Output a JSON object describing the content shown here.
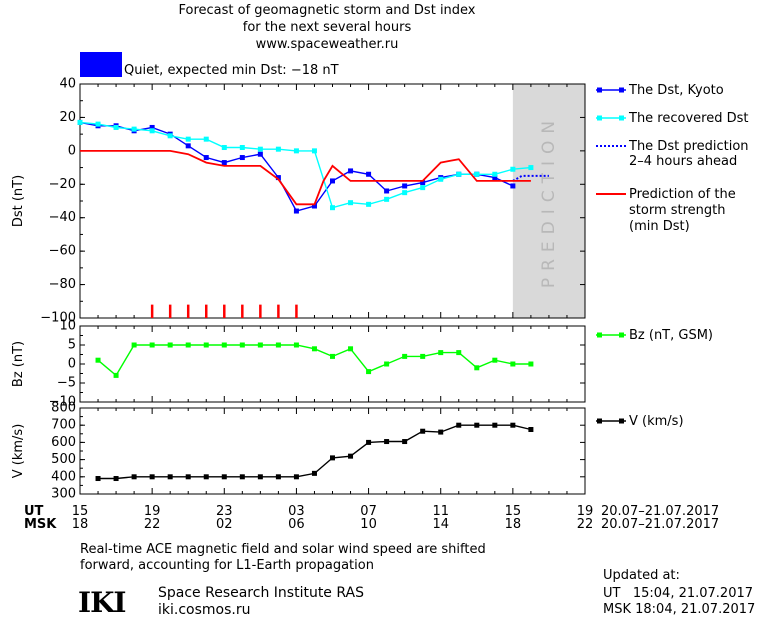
{
  "header": {
    "title_line1": "Forecast of geomagnetic storm and Dst index",
    "title_line2": "for the next several hours",
    "url": "www.spaceweather.ru",
    "status": "Quiet, expected min Dst: −18 nT",
    "status_color": "#0000ff"
  },
  "footer": {
    "note_line1": "Real-time ACE magnetic field and solar wind speed are shifted",
    "note_line2": "forward, accounting for L1-Earth propagation",
    "logo": "IKI",
    "org": "Space Research Institute RAS",
    "site": "iki.cosmos.ru",
    "updated_label": "Updated at:",
    "updated_ut": "UT   15:04, 21.07.2017",
    "updated_msk": "MSK 18:04, 21.07.2017"
  },
  "chart_data": [
    {
      "type": "line",
      "id": "dst",
      "ylabel": "Dst (nT)",
      "ylim": [
        -100,
        40
      ],
      "yticks": [
        -100,
        -80,
        -60,
        -40,
        -20,
        0,
        20,
        40
      ],
      "xlim": [
        15,
        43
      ],
      "prediction_band": [
        39,
        43
      ],
      "prediction_label": "PREDICTION",
      "series": [
        {
          "name": "The Dst, Kyoto",
          "color": "#0000ff",
          "style": "line-square",
          "x": [
            15,
            16,
            17,
            18,
            19,
            20,
            21,
            22,
            23,
            24,
            25,
            26,
            27,
            28,
            29,
            30,
            31,
            32,
            33,
            34,
            35,
            36,
            37,
            38,
            39
          ],
          "y": [
            17,
            15,
            15,
            12,
            14,
            10,
            3,
            -4,
            -7,
            -4,
            -2,
            -16,
            -36,
            -33,
            -18,
            -12,
            -14,
            -24,
            -21,
            -19,
            -16,
            -14,
            -14,
            -16,
            -21
          ]
        },
        {
          "name": "The recovered Dst",
          "color": "#00ffff",
          "style": "line-square",
          "x": [
            15,
            16,
            17,
            18,
            19,
            20,
            21,
            22,
            23,
            24,
            25,
            26,
            27,
            28,
            29,
            30,
            31,
            32,
            33,
            34,
            35,
            36,
            37,
            38,
            39,
            40
          ],
          "y": [
            17,
            16,
            14,
            13,
            12,
            9,
            7,
            7,
            2,
            2,
            1,
            1,
            0,
            0,
            -34,
            -31,
            -32,
            -29,
            -25,
            -22,
            -17,
            -14,
            -14,
            -14,
            -11,
            -10
          ]
        },
        {
          "name": "The Dst prediction 2-4 hours ahead",
          "color": "#0000ff",
          "style": "dotted",
          "x": [
            39,
            39.5,
            41
          ],
          "y": [
            -18,
            -15,
            -15
          ]
        },
        {
          "name": "Prediction of the storm strength (min Dst)",
          "color": "#ff0000",
          "style": "line",
          "x": [
            15,
            20,
            21,
            22,
            23,
            24,
            25,
            26,
            27,
            28,
            28.5,
            29,
            30,
            31,
            32,
            33,
            34,
            35,
            35.5,
            36,
            37,
            38,
            39,
            40
          ],
          "y": [
            0,
            0,
            -2,
            -7,
            -9,
            -9,
            -9,
            -17,
            -32,
            -32,
            -18,
            -9,
            -18,
            -18,
            -18,
            -18,
            -18,
            -7,
            -6,
            -5,
            -18,
            -18,
            -18,
            -18
          ]
        }
      ],
      "storm_bars": {
        "x": [
          19,
          20,
          21,
          22,
          23,
          24,
          25,
          26,
          27
        ],
        "y0": -100,
        "y1": -92,
        "color": "#ff0000"
      }
    },
    {
      "type": "line",
      "id": "bz",
      "ylabel": "Bz (nT)",
      "ylim": [
        -10,
        10
      ],
      "yticks": [
        -10,
        -5,
        0,
        5,
        10
      ],
      "xlim": [
        15,
        43
      ],
      "series": [
        {
          "name": "Bz (nT, GSM)",
          "color": "#00ff00",
          "style": "line-square",
          "x": [
            16,
            17,
            18,
            19,
            20,
            21,
            22,
            23,
            24,
            25,
            26,
            27,
            28,
            29,
            30,
            31,
            32,
            33,
            34,
            35,
            36,
            37,
            38,
            39,
            40
          ],
          "y": [
            1,
            -3,
            5,
            5,
            5,
            5,
            5,
            5,
            5,
            5,
            5,
            5,
            4,
            2,
            4,
            -2,
            0,
            2,
            2,
            3,
            3,
            -1,
            1,
            0,
            0
          ]
        }
      ]
    },
    {
      "type": "line",
      "id": "speed",
      "ylabel": "V (km/s)",
      "ylim": [
        300,
        800
      ],
      "yticks": [
        300,
        400,
        500,
        600,
        700,
        800
      ],
      "xlim": [
        15,
        43
      ],
      "series": [
        {
          "name": "V (km/s)",
          "color": "#000000",
          "style": "line-square",
          "x": [
            16,
            17,
            18,
            19,
            20,
            21,
            22,
            23,
            24,
            25,
            26,
            27,
            28,
            29,
            30,
            31,
            32,
            33,
            34,
            35,
            36,
            37,
            38,
            39,
            40
          ],
          "y": [
            390,
            390,
            400,
            400,
            400,
            400,
            400,
            400,
            400,
            400,
            400,
            400,
            420,
            510,
            520,
            600,
            605,
            605,
            665,
            660,
            700,
            700,
            700,
            700,
            675
          ]
        }
      ]
    }
  ],
  "time_axis": {
    "ut_label": "UT",
    "msk_label": "MSK",
    "x": [
      15,
      19,
      23,
      27,
      31,
      35,
      39,
      43
    ],
    "ut_ticks": [
      "15",
      "19",
      "23",
      "03",
      "07",
      "11",
      "15",
      "19"
    ],
    "msk_ticks": [
      "18",
      "22",
      "02",
      "06",
      "10",
      "14",
      "18",
      "22"
    ],
    "ut_range": "20.07–21.07.2017",
    "msk_range": "20.07–21.07.2017"
  },
  "legend": {
    "dst_kyoto": "The Dst, Kyoto",
    "recovered": "The recovered Dst",
    "prediction_line1": "The Dst prediction",
    "prediction_line2": "2–4 hours ahead",
    "storm_line1": "Prediction of the",
    "storm_line2": "storm strength",
    "storm_line3": "(min Dst)",
    "bz": "Bz (nT, GSM)",
    "v": "V (km/s)"
  }
}
